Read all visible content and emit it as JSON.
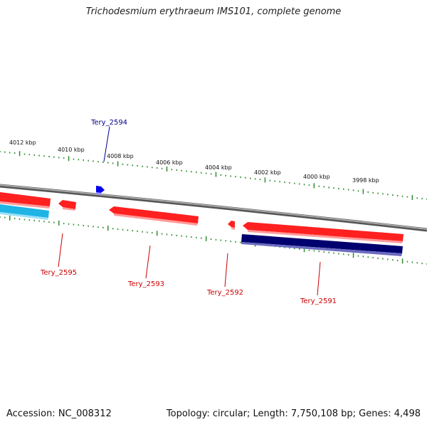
{
  "title": "Trichodesmium erythraeum IMS101, complete genome",
  "footer": {
    "accession": "Accession: NC_008312",
    "summary": "Topology: circular; Length: 7,750,108 bp; Genes: 4,498"
  },
  "scale_labels": [
    {
      "label": "4012 kbp",
      "kbp": 4012
    },
    {
      "label": "4010 kbp",
      "kbp": 4010
    },
    {
      "label": "4008 kbp",
      "kbp": 4008
    },
    {
      "label": "4006 kbp",
      "kbp": 4006
    },
    {
      "label": "4004 kbp",
      "kbp": 4004
    },
    {
      "label": "4002 kbp",
      "kbp": 4002
    },
    {
      "label": "4000 kbp",
      "kbp": 4000
    },
    {
      "label": "3998 kbp",
      "kbp": 3998
    }
  ],
  "gene_labels": [
    {
      "name": "Tery_2594",
      "color": "#00008b"
    },
    {
      "name": "Tery_2595",
      "color": "#cc0000"
    },
    {
      "name": "Tery_2593",
      "color": "#cc0000"
    },
    {
      "name": "Tery_2592",
      "color": "#cc0000"
    },
    {
      "name": "Tery_2591",
      "color": "#cc0000"
    }
  ],
  "colors": {
    "backbone": "#808080",
    "tick": "#2e8b2e",
    "cds_red": "#ff0000",
    "cds_blue": "#0000ee",
    "orf_navy": "#00006e",
    "orf_cyan": "#1eb4e6"
  }
}
